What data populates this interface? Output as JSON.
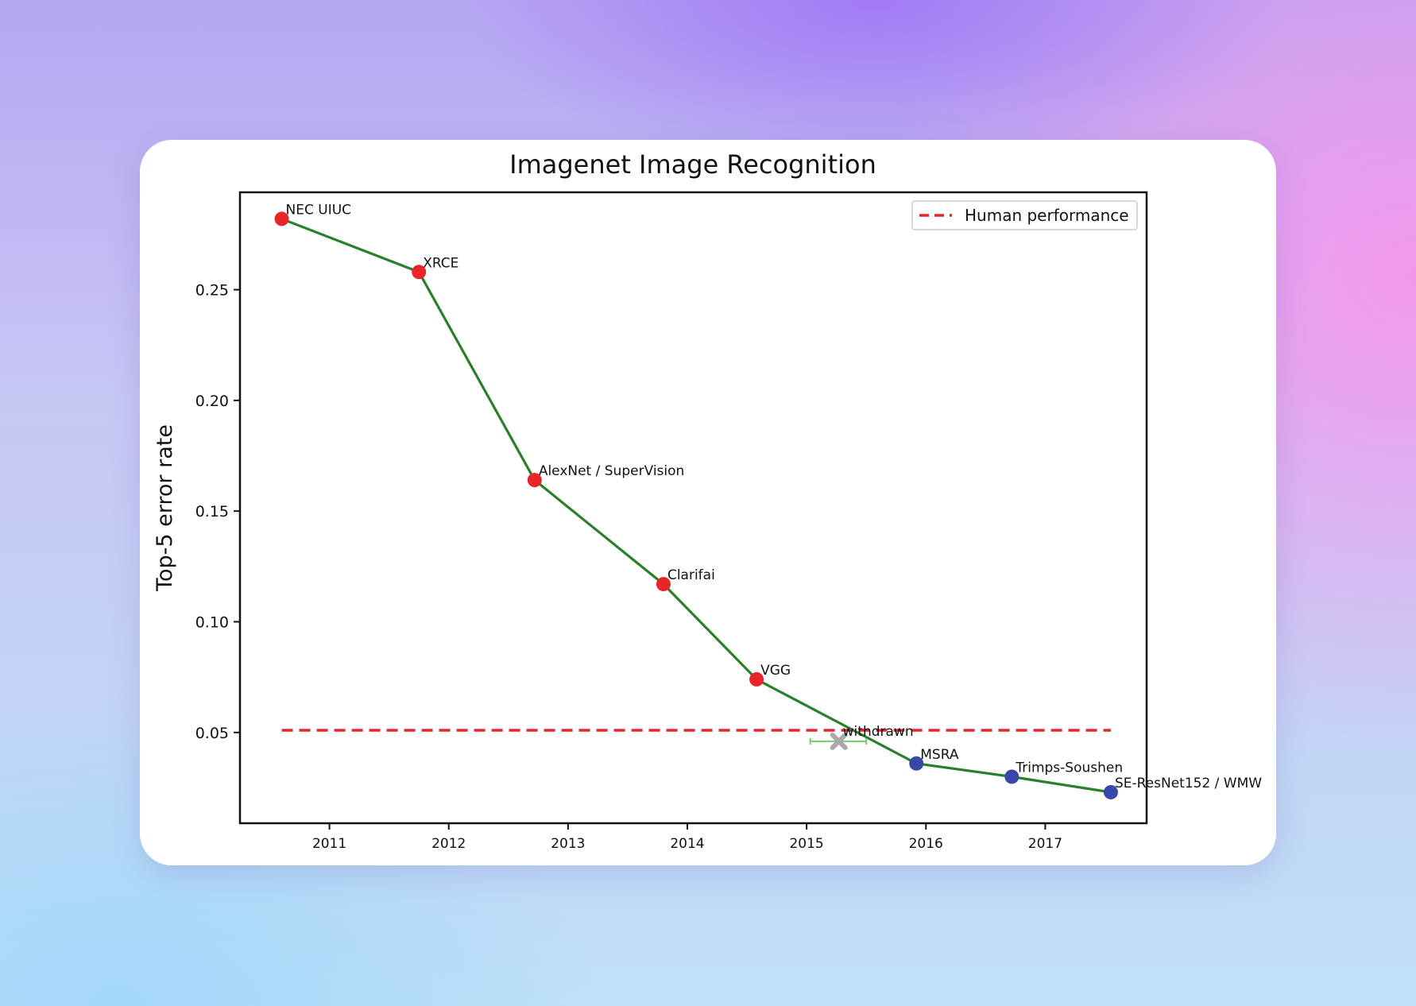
{
  "chart_data": {
    "type": "line",
    "title": "Imagenet Image Recognition",
    "xlabel": "",
    "ylabel": "Top-5 error rate",
    "xlim": [
      2010.25,
      2017.85
    ],
    "ylim": [
      0.009,
      0.294
    ],
    "x_ticks": [
      2011,
      2012,
      2013,
      2014,
      2015,
      2016,
      2017
    ],
    "y_ticks": [
      0.05,
      0.1,
      0.15,
      0.2,
      0.25
    ],
    "y_tick_labels": [
      "0.05",
      "0.10",
      "0.15",
      "0.20",
      "0.25"
    ],
    "grid": false,
    "legend_position": "top-right",
    "line_color": "#2a7f2a",
    "points": [
      {
        "label": "NEC UIUC",
        "x": 2010.6,
        "y": 0.282,
        "color": "#e8262a"
      },
      {
        "label": "XRCE",
        "x": 2011.75,
        "y": 0.258,
        "color": "#e8262a"
      },
      {
        "label": "AlexNet / SuperVision",
        "x": 2012.72,
        "y": 0.164,
        "color": "#e8262a"
      },
      {
        "label": "Clarifai",
        "x": 2013.8,
        "y": 0.117,
        "color": "#e8262a"
      },
      {
        "label": "VGG",
        "x": 2014.58,
        "y": 0.074,
        "color": "#e8262a"
      },
      {
        "label": "MSRA",
        "x": 2015.92,
        "y": 0.036,
        "color": "#3748a8"
      },
      {
        "label": "Trimps-Soushen",
        "x": 2016.72,
        "y": 0.03,
        "color": "#3748a8"
      },
      {
        "label": "SE-ResNet152 / WMW",
        "x": 2017.55,
        "y": 0.023,
        "color": "#3748a8"
      }
    ],
    "withdrawn": {
      "label": "withdrawn",
      "x": 2015.27,
      "y": 0.046,
      "xerr_low": 2015.03,
      "xerr_high": 2015.5,
      "color": "#a9a9a9",
      "errorbar_color": "#6fcf6f"
    },
    "human_performance": {
      "name": "Human performance",
      "y": 0.051,
      "x_start": 2010.6,
      "x_end": 2017.55,
      "color": "#e8262a"
    }
  }
}
